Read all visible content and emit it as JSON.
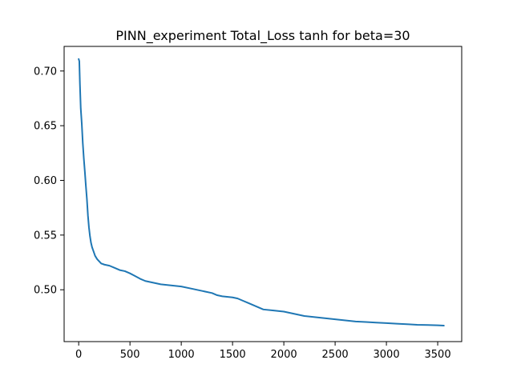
{
  "chart_data": {
    "type": "line",
    "title": "PINN_experiment Total_Loss tanh for beta=30",
    "xlabel": "",
    "ylabel": "",
    "xlim": [
      -142,
      3734
    ],
    "ylim": [
      0.4526,
      0.7225
    ],
    "x_ticks": [
      {
        "value": 0,
        "label": "0"
      },
      {
        "value": 500,
        "label": "500"
      },
      {
        "value": 1000,
        "label": "1000"
      },
      {
        "value": 1500,
        "label": "1500"
      },
      {
        "value": 2000,
        "label": "2000"
      },
      {
        "value": 2500,
        "label": "2500"
      },
      {
        "value": 3000,
        "label": "3000"
      },
      {
        "value": 3500,
        "label": "3500"
      }
    ],
    "y_ticks": [
      {
        "value": 0.5,
        "label": "0.50"
      },
      {
        "value": 0.55,
        "label": "0.55"
      },
      {
        "value": 0.6,
        "label": "0.60"
      },
      {
        "value": 0.65,
        "label": "0.65"
      },
      {
        "value": 0.7,
        "label": "0.70"
      }
    ],
    "grid": false,
    "line_color": "#1f77b4",
    "series": [
      {
        "x": [
          0,
          6,
          12,
          20,
          30,
          40,
          50,
          60,
          70,
          80,
          90,
          100,
          110,
          120,
          130,
          145,
          160,
          180,
          200,
          220,
          250,
          300,
          350,
          400,
          450,
          500,
          540,
          560,
          600,
          650,
          700,
          800,
          900,
          1000,
          1100,
          1200,
          1300,
          1350,
          1400,
          1500,
          1550,
          1600,
          1650,
          1700,
          1750,
          1800,
          1900,
          2000,
          2100,
          2200,
          2300,
          2400,
          2500,
          2600,
          2700,
          2800,
          2900,
          3000,
          3100,
          3200,
          3300,
          3400,
          3500,
          3560
        ],
        "y": [
          0.711,
          0.709,
          0.688,
          0.666,
          0.652,
          0.634,
          0.62,
          0.608,
          0.595,
          0.583,
          0.568,
          0.557,
          0.549,
          0.543,
          0.539,
          0.535,
          0.531,
          0.528,
          0.526,
          0.524,
          0.523,
          0.522,
          0.52,
          0.518,
          0.517,
          0.515,
          0.513,
          0.512,
          0.51,
          0.508,
          0.507,
          0.505,
          0.504,
          0.503,
          0.501,
          0.499,
          0.497,
          0.495,
          0.494,
          0.493,
          0.492,
          0.49,
          0.488,
          0.486,
          0.484,
          0.482,
          0.481,
          0.48,
          0.478,
          0.476,
          0.475,
          0.474,
          0.473,
          0.472,
          0.471,
          0.4705,
          0.47,
          0.4695,
          0.469,
          0.4685,
          0.468,
          0.4678,
          0.4675,
          0.4672
        ]
      }
    ]
  }
}
